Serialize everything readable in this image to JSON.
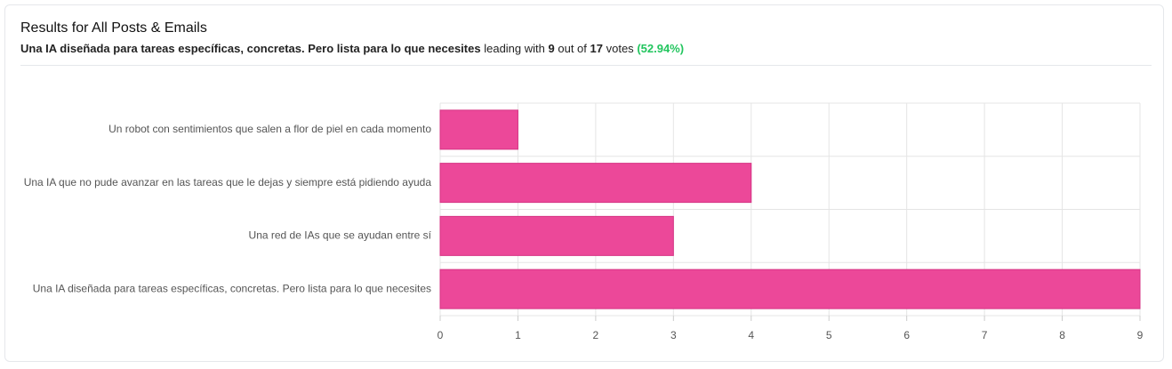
{
  "header": {
    "title": "Results for All Posts & Emails",
    "summary": {
      "leader": "Una IA diseñada para tareas específicas, concretas. Pero lista para lo que necesites",
      "leading_with": "leading with",
      "count": 9,
      "out_of": "out of",
      "total": 17,
      "votes": "votes",
      "percent": "(52.94%)"
    }
  },
  "chart_data": {
    "type": "bar",
    "orientation": "horizontal",
    "categories": [
      "Un robot con sentimientos que salen a flor de piel en cada momento",
      "Una IA que no pude avanzar en las tareas que le dejas y siempre está pidiendo ayuda",
      "Una red de IAs que se ayudan entre sí",
      "Una IA diseñada para tareas específicas, concretas. Pero lista para lo que necesites"
    ],
    "values": [
      1,
      4,
      3,
      9
    ],
    "color": "#ec4899",
    "xlim": [
      0,
      9
    ],
    "xticks": [
      0,
      1,
      2,
      3,
      4,
      5,
      6,
      7,
      8,
      9
    ],
    "grid": true
  }
}
